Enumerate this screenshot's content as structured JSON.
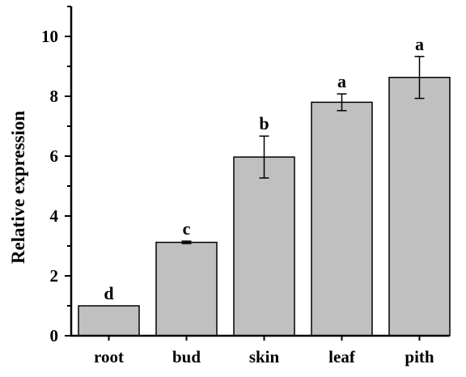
{
  "chart_data": {
    "type": "bar",
    "title": "",
    "xlabel": "",
    "ylabel": "Relative expression",
    "categories": [
      "root",
      "bud",
      "skin",
      "leaf",
      "pith"
    ],
    "values": [
      1.0,
      3.12,
      5.97,
      7.8,
      8.63
    ],
    "errors": [
      0.0,
      0.04,
      0.7,
      0.28,
      0.7
    ],
    "significance": [
      "d",
      "c",
      "b",
      "a",
      "a"
    ],
    "ylim": [
      0,
      11
    ],
    "yticks": [
      0,
      2,
      4,
      6,
      8,
      10
    ],
    "grid": false,
    "legend": "none",
    "bar_color": "#c0c0c0",
    "edge_color": "#000000"
  }
}
